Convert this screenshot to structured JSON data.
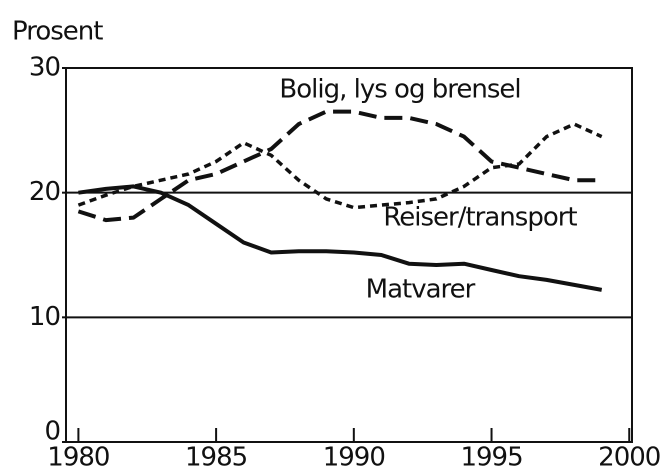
{
  "chart_data": {
    "type": "line",
    "y_label": "Prosent",
    "x": [
      1980,
      1981,
      1982,
      1983,
      1984,
      1985,
      1986,
      1987,
      1988,
      1989,
      1990,
      1991,
      1992,
      1993,
      1994,
      1995,
      1996,
      1997,
      1998,
      1999
    ],
    "series": [
      {
        "name": "Bolig, lys og brensel",
        "color": "#111111",
        "dash": "long",
        "values": [
          18.5,
          17.8,
          18,
          19.5,
          21,
          21.5,
          22.5,
          23.5,
          25.5,
          26.5,
          26.5,
          26,
          26,
          25.5,
          24.5,
          22.5,
          22,
          21.5,
          21,
          21
        ]
      },
      {
        "name": "Reiser/transport",
        "color": "#111111",
        "dash": "short",
        "values": [
          19,
          19.8,
          20.5,
          21,
          21.5,
          22.5,
          24,
          23,
          21,
          19.5,
          18.8,
          19,
          19.2,
          19.5,
          20.5,
          22,
          22.3,
          24.5,
          25.5,
          24.5
        ]
      },
      {
        "name": "Matvarer",
        "color": "#111111",
        "dash": "solid",
        "values": [
          20,
          20.3,
          20.5,
          20,
          19,
          17.5,
          16,
          15.2,
          15.3,
          15.3,
          15.2,
          15,
          14.3,
          14.2,
          14.3,
          13.8,
          13.3,
          13,
          12.6,
          12.2
        ]
      }
    ],
    "xlim": [
      1979.55,
      2000.1
    ],
    "ylim": [
      0,
      30
    ],
    "xticks": [
      1980,
      1985,
      1990,
      1995,
      2000
    ],
    "yticks": [
      0,
      10,
      20,
      30
    ],
    "grid_lines": [
      10,
      20
    ]
  }
}
